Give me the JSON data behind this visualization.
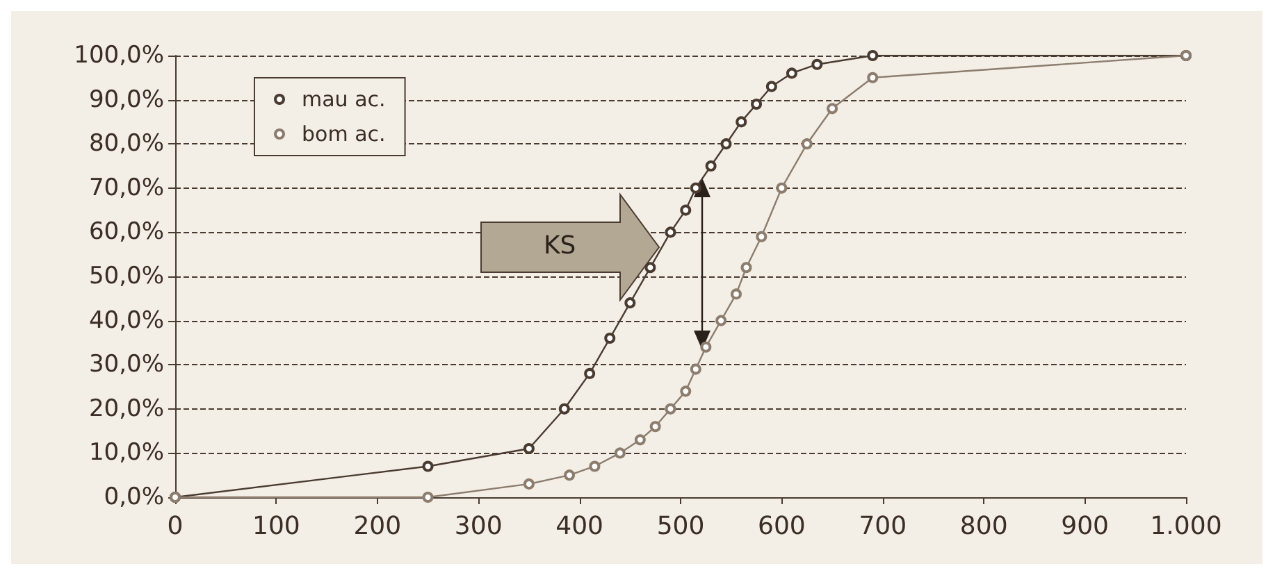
{
  "chart_data": {
    "type": "line",
    "series": [
      {
        "name": "mau ac.",
        "color": "#4a3b30",
        "x": [
          0,
          250,
          350,
          385,
          410,
          430,
          450,
          470,
          490,
          505,
          515,
          530,
          545,
          560,
          575,
          590,
          610,
          635,
          690,
          1000
        ],
        "values": [
          0,
          7,
          11,
          20,
          28,
          36,
          44,
          52,
          60,
          65,
          70,
          75,
          80,
          85,
          89,
          93,
          96,
          98,
          100,
          100
        ]
      },
      {
        "name": "bom ac.",
        "color": "#8c7d6e",
        "x": [
          0,
          250,
          350,
          390,
          415,
          440,
          460,
          475,
          490,
          505,
          515,
          525,
          540,
          555,
          565,
          580,
          600,
          625,
          650,
          690,
          1000
        ],
        "values": [
          0,
          0,
          3,
          5,
          7,
          10,
          13,
          16,
          20,
          24,
          29,
          34,
          40,
          46,
          52,
          59,
          70,
          80,
          88,
          95,
          100
        ]
      }
    ],
    "xlim": [
      0,
      1000
    ],
    "xticks": [
      0,
      100,
      200,
      300,
      400,
      500,
      600,
      700,
      800,
      900,
      {
        "value": 1000,
        "label": "1.000"
      }
    ],
    "ylim": [
      0,
      100
    ],
    "yticks": [
      {
        "value": 0,
        "label": "0,0%"
      },
      {
        "value": 10,
        "label": "10,0%"
      },
      {
        "value": 20,
        "label": "20,0%"
      },
      {
        "value": 30,
        "label": "30,0%"
      },
      {
        "value": 40,
        "label": "40,0%"
      },
      {
        "value": 50,
        "label": "50,0%"
      },
      {
        "value": 60,
        "label": "60,0%"
      },
      {
        "value": 70,
        "label": "70,0%"
      },
      {
        "value": 80,
        "label": "80,0%"
      },
      {
        "value": 90,
        "label": "90,0%"
      },
      {
        "value": 100,
        "label": "100,0%"
      }
    ],
    "grid": "y",
    "legend": "top left",
    "marker": "circle",
    "line_style": "solid",
    "annotations": [
      "KS"
    ]
  }
}
